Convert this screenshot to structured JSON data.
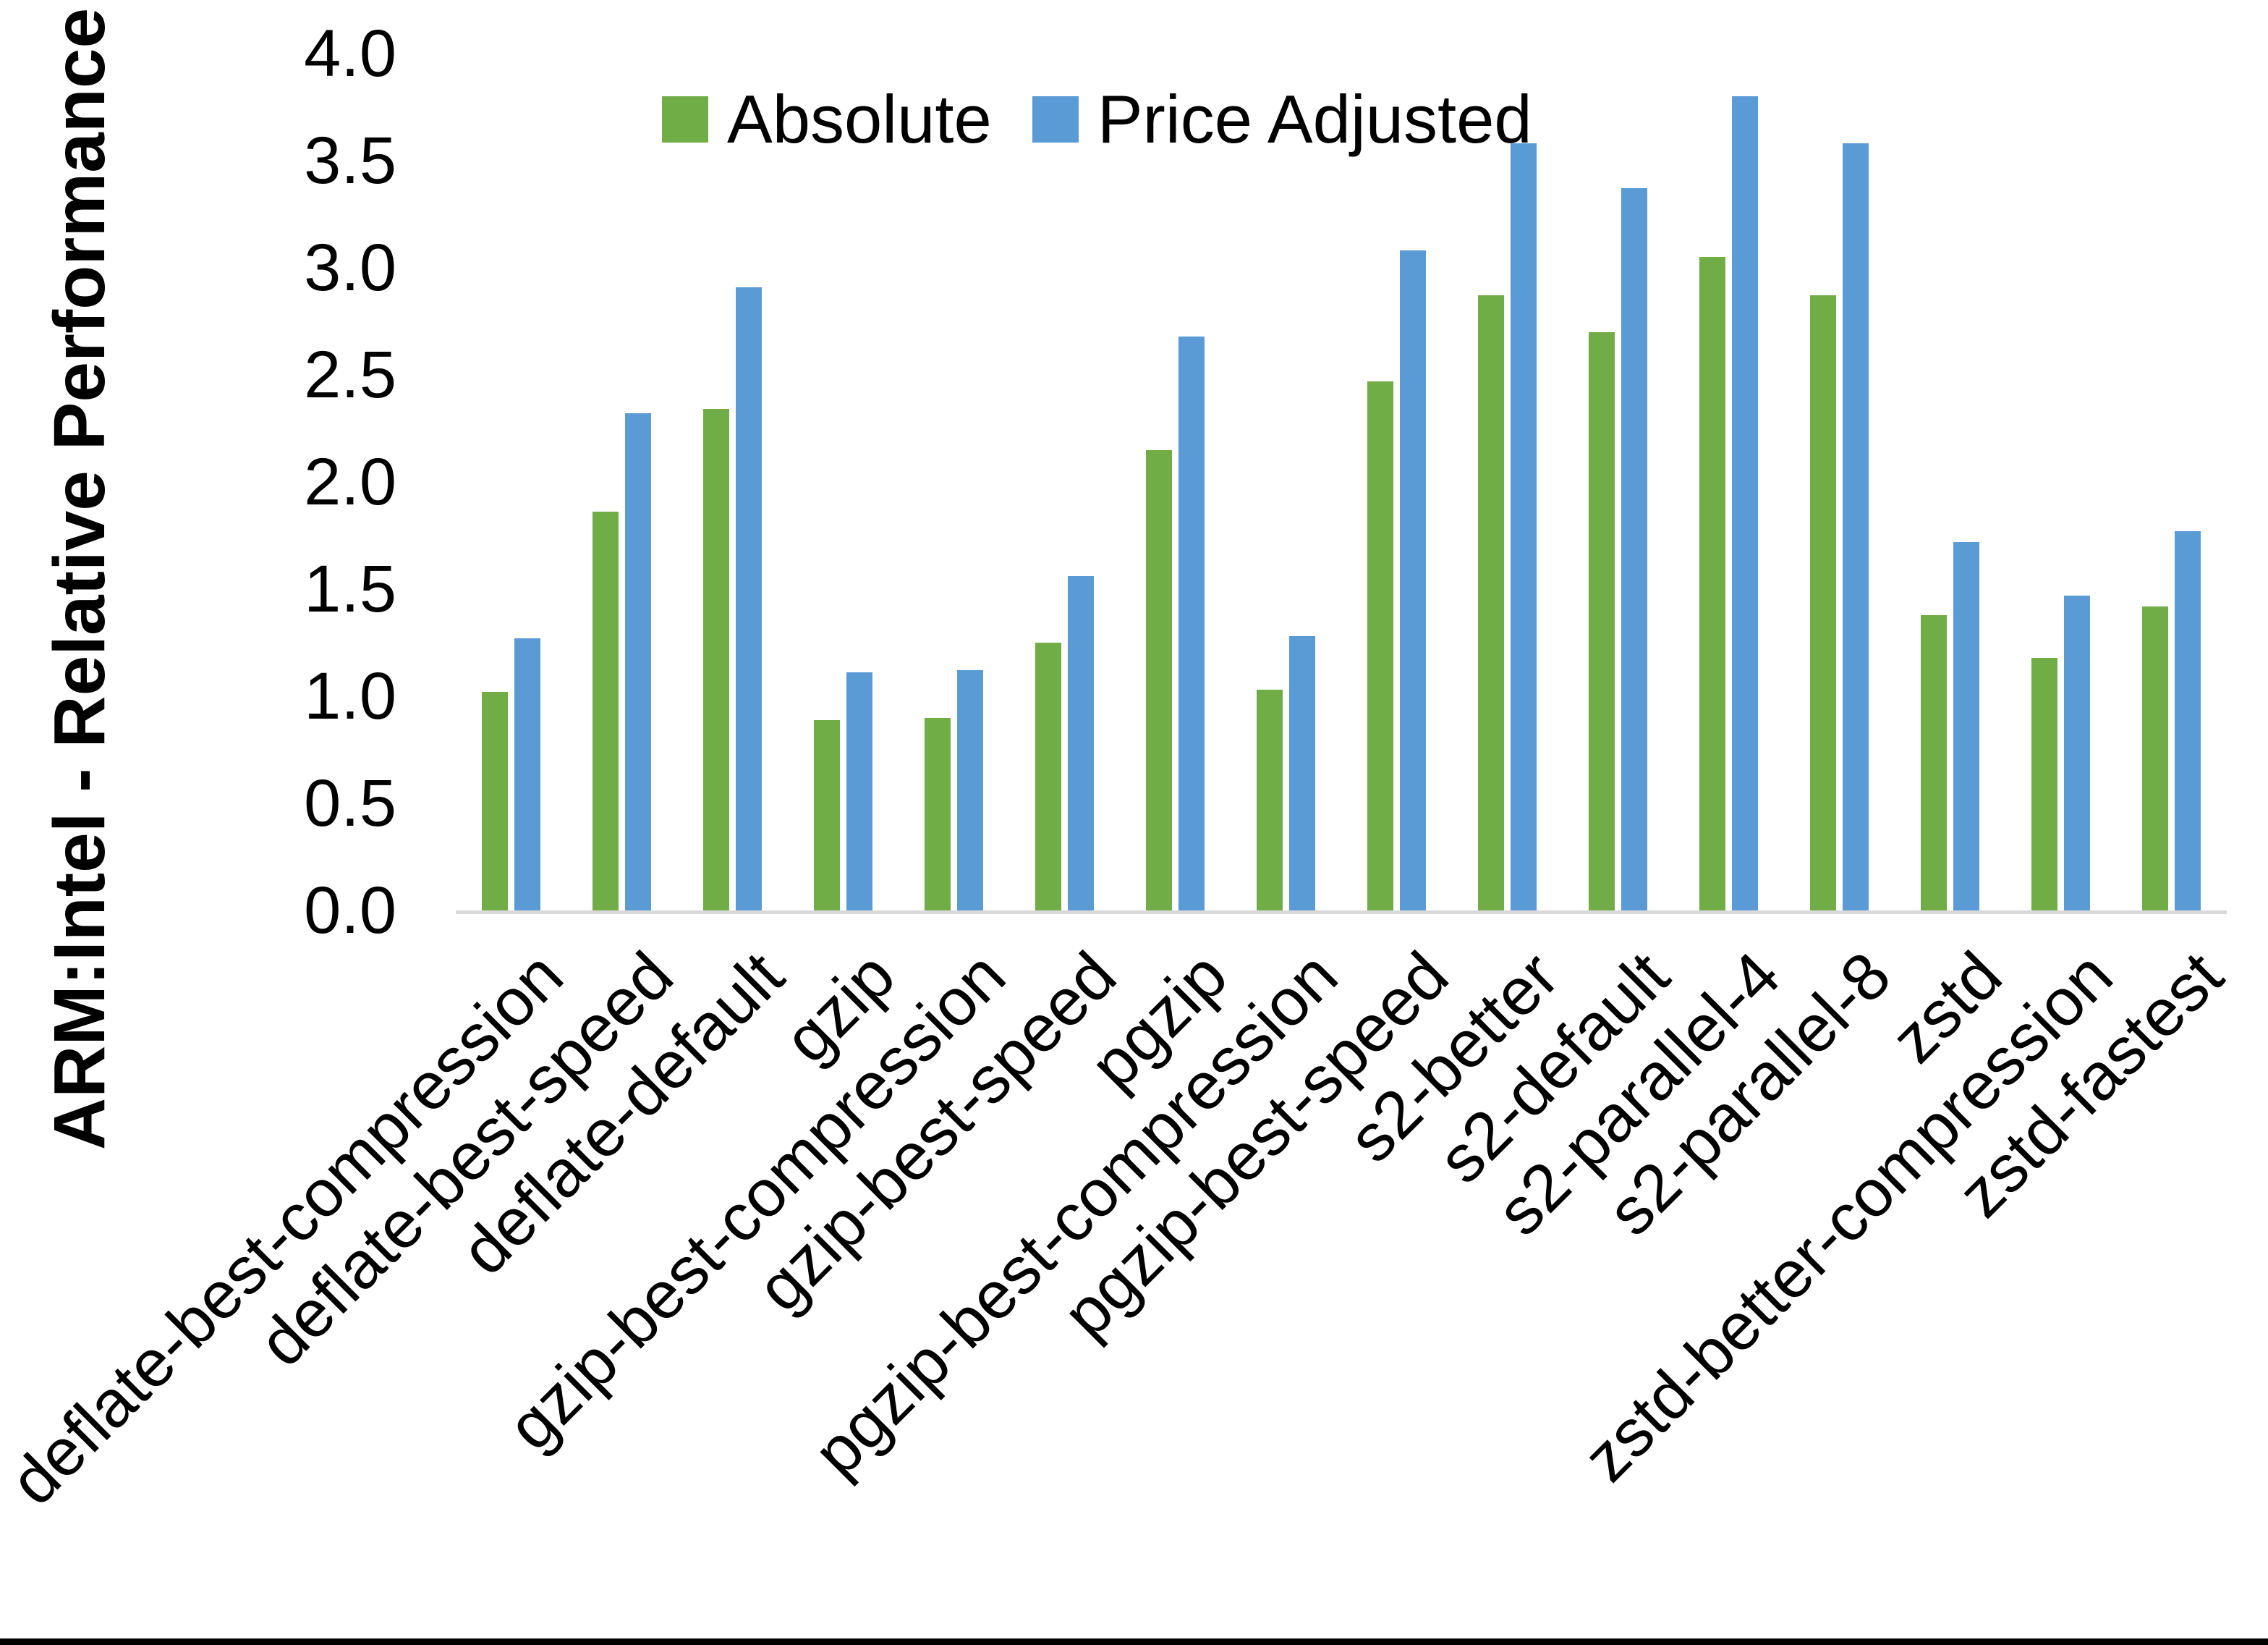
{
  "chart_data": {
    "type": "bar",
    "title": "",
    "xlabel": "",
    "ylabel": "ARM:Intel - Relative Performance",
    "ylim": [
      0.0,
      4.0
    ],
    "ytick_step": 0.5,
    "ytick_labels": [
      "0.0",
      "0.5",
      "1.0",
      "1.5",
      "2.0",
      "2.5",
      "3.0",
      "3.5",
      "4.0"
    ],
    "grid": false,
    "legend_position": "top-center",
    "categories": [
      "deflate-best-compression",
      "deflate-best-speed",
      "deflate-default",
      "gzip",
      "gzip-best-compression",
      "gzip-best-speed",
      "pgzip",
      "pgzip-best-compression",
      "pgzip-best-speed",
      "s2-better",
      "s2-default",
      "s2-parallel-4",
      "s2-parallel-8",
      "zstd",
      "zstd-better-compression",
      "zstd-fastest"
    ],
    "series": [
      {
        "name": "Absolute",
        "color": "#70AD47",
        "values": [
          1.02,
          1.86,
          2.34,
          0.89,
          0.9,
          1.25,
          2.15,
          1.03,
          2.47,
          2.87,
          2.7,
          3.05,
          2.87,
          1.38,
          1.18,
          1.42
        ]
      },
      {
        "name": "Price Adjusted",
        "color": "#5B9BD5",
        "values": [
          1.27,
          2.32,
          2.91,
          1.11,
          1.12,
          1.56,
          2.68,
          1.28,
          3.08,
          3.58,
          3.37,
          3.8,
          3.58,
          1.72,
          1.47,
          1.77
        ]
      }
    ],
    "axis_line_color": "#D9D9D9",
    "text_color": "#000000",
    "background_color": "#FFFFFF"
  }
}
